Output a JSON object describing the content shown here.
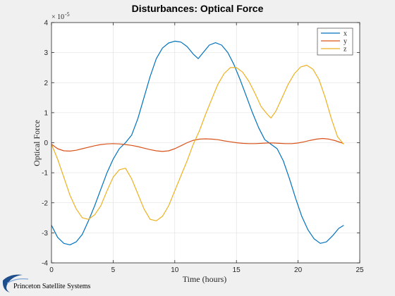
{
  "chart_data": {
    "type": "line",
    "title": "Disturbances: Optical Force",
    "xlabel": "Time (hours)",
    "ylabel": "Optical Force",
    "y_exponent_base": "× 10",
    "y_exponent_power": "-5",
    "xlim": [
      0,
      25
    ],
    "ylim": [
      -4,
      4
    ],
    "xticks": [
      0,
      5,
      10,
      15,
      20,
      25
    ],
    "yticks": [
      -4,
      -3,
      -2,
      -1,
      0,
      1,
      2,
      3,
      4
    ],
    "grid": true,
    "legend_position": "top-right",
    "series": [
      {
        "name": "x",
        "color": "#0072bd",
        "x": [
          0,
          0.5,
          1,
          1.5,
          2,
          2.5,
          3,
          3.5,
          4,
          4.5,
          5,
          5.5,
          6,
          6.5,
          7,
          7.5,
          8,
          8.5,
          9,
          9.5,
          10,
          10.5,
          11,
          11.5,
          11.9,
          12.3,
          12.8,
          13.3,
          13.8,
          14.3,
          14.8,
          15.3,
          15.8,
          16.3,
          16.8,
          17.3,
          17.8,
          18.3,
          18.8,
          19.3,
          19.8,
          20.3,
          20.8,
          21.3,
          21.8,
          22.3,
          22.8,
          23.3,
          23.7
        ],
        "y": [
          -2.75,
          -3.15,
          -3.35,
          -3.4,
          -3.3,
          -3.05,
          -2.6,
          -2.1,
          -1.55,
          -1.0,
          -0.55,
          -0.2,
          0.0,
          0.25,
          0.8,
          1.5,
          2.2,
          2.8,
          3.15,
          3.32,
          3.38,
          3.35,
          3.2,
          2.95,
          2.8,
          3.0,
          3.25,
          3.33,
          3.25,
          3.0,
          2.6,
          2.1,
          1.55,
          1.0,
          0.5,
          0.1,
          -0.05,
          -0.2,
          -0.6,
          -1.2,
          -1.85,
          -2.45,
          -2.9,
          -3.2,
          -3.35,
          -3.3,
          -3.1,
          -2.85,
          -2.75
        ]
      },
      {
        "name": "y",
        "color": "#d95319",
        "x": [
          0,
          0.5,
          1,
          1.5,
          2,
          2.5,
          3,
          3.5,
          4,
          4.5,
          5,
          5.5,
          6,
          6.5,
          7,
          7.5,
          8,
          8.5,
          9,
          9.5,
          10,
          10.5,
          11,
          11.5,
          12,
          12.5,
          13,
          13.5,
          14,
          14.5,
          15,
          15.5,
          16,
          16.5,
          17,
          17.5,
          18,
          18.5,
          19,
          19.5,
          20,
          20.5,
          21,
          21.5,
          22,
          22.5,
          23,
          23.5,
          23.7
        ],
        "y": [
          -0.05,
          -0.2,
          -0.27,
          -0.28,
          -0.25,
          -0.2,
          -0.15,
          -0.1,
          -0.06,
          -0.04,
          -0.03,
          -0.04,
          -0.06,
          -0.09,
          -0.13,
          -0.18,
          -0.23,
          -0.27,
          -0.29,
          -0.27,
          -0.2,
          -0.1,
          0.0,
          0.08,
          0.12,
          0.13,
          0.12,
          0.1,
          0.06,
          0.03,
          0.0,
          -0.02,
          -0.03,
          -0.03,
          -0.02,
          -0.01,
          -0.01,
          -0.02,
          -0.03,
          -0.03,
          -0.01,
          0.03,
          0.08,
          0.12,
          0.14,
          0.12,
          0.07,
          0.0,
          -0.03
        ]
      },
      {
        "name": "z",
        "color": "#edb120",
        "x": [
          0,
          0.5,
          1,
          1.5,
          2,
          2.5,
          3,
          3.5,
          4,
          4.5,
          5,
          5.5,
          6,
          6.5,
          7,
          7.5,
          8,
          8.5,
          9,
          9.5,
          10,
          10.5,
          11,
          11.5,
          12,
          12.5,
          13,
          13.5,
          14,
          14.5,
          15,
          15.5,
          16,
          16.5,
          17,
          17.5,
          17.8,
          18.2,
          18.7,
          19.2,
          19.7,
          20.2,
          20.7,
          21.2,
          21.7,
          22.2,
          22.7,
          23.2,
          23.7
        ],
        "y": [
          -0.05,
          -0.55,
          -1.15,
          -1.75,
          -2.2,
          -2.5,
          -2.55,
          -2.4,
          -2.1,
          -1.6,
          -1.15,
          -0.9,
          -0.85,
          -1.2,
          -1.7,
          -2.2,
          -2.55,
          -2.6,
          -2.45,
          -2.1,
          -1.6,
          -1.1,
          -0.6,
          -0.05,
          0.4,
          0.95,
          1.45,
          1.95,
          2.3,
          2.5,
          2.5,
          2.35,
          2.05,
          1.65,
          1.2,
          0.95,
          0.82,
          1.05,
          1.5,
          1.95,
          2.3,
          2.52,
          2.58,
          2.45,
          2.1,
          1.5,
          0.8,
          0.2,
          -0.05
        ]
      }
    ]
  },
  "footer": {
    "logo_text": "Princeton Satellite Systems"
  }
}
